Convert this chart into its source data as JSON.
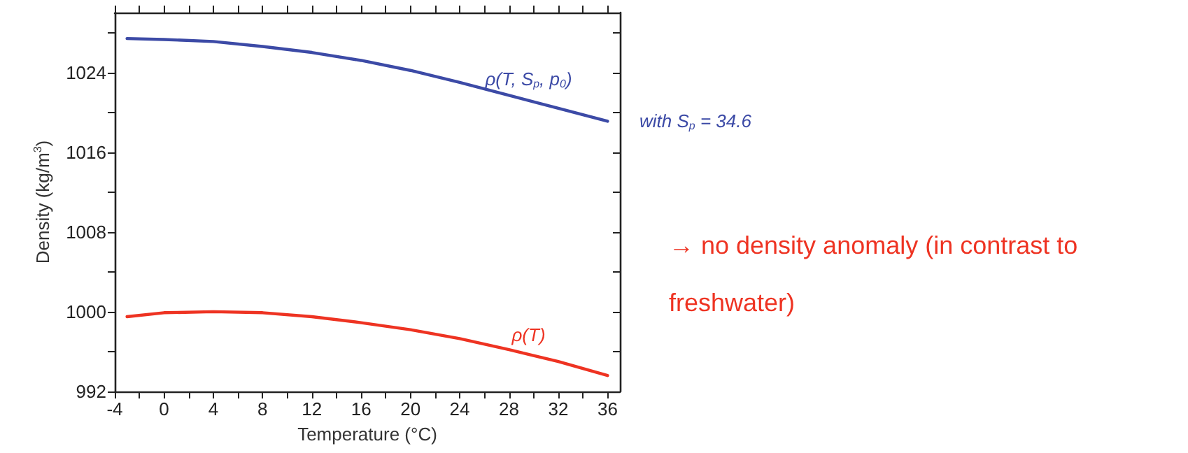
{
  "chart_data": {
    "type": "line",
    "xlabel": "Temperature (°C)",
    "ylabel": "Density (kg/m$^{3}$)",
    "x": [
      -3,
      0,
      4,
      8,
      12,
      16,
      20,
      24,
      28,
      32,
      36
    ],
    "series": [
      {
        "name": "ρ(T, S$_{p}$, p$_{0}$)",
        "color": "#3c4aa6",
        "values": [
          1027.4,
          1027.3,
          1027.1,
          1026.6,
          1026.0,
          1025.2,
          1024.2,
          1023.0,
          1021.7,
          1020.4,
          1019.1
        ]
      },
      {
        "name": "ρ(T)",
        "color": "#ee3322",
        "values": [
          999.5,
          999.9,
          1000.0,
          999.9,
          999.5,
          998.9,
          998.2,
          997.3,
          996.2,
          995.0,
          993.6
        ]
      }
    ],
    "xlim": [
      -4,
      37
    ],
    "ylim": [
      992,
      1030
    ],
    "xticks": [
      -4,
      {
        "value": -2,
        "label": null
      },
      0,
      {
        "value": 2,
        "label": null
      },
      4,
      {
        "value": 6,
        "label": null
      },
      8,
      {
        "value": 10,
        "label": null
      },
      12,
      {
        "value": 14,
        "label": null
      },
      16,
      {
        "value": 18,
        "label": null
      },
      20,
      {
        "value": 22,
        "label": null
      },
      24,
      {
        "value": 26,
        "label": null
      },
      28,
      {
        "value": 30,
        "label": null
      },
      32,
      {
        "value": 34,
        "label": null
      },
      36
    ],
    "yticks": [
      992,
      {
        "value": 996,
        "label": null
      },
      1000,
      {
        "value": 1004,
        "label": null
      },
      1008,
      {
        "value": 1012,
        "label": null
      },
      1016,
      {
        "value": 1020,
        "label": null
      },
      1024,
      {
        "value": 1028,
        "label": null
      }
    ],
    "annotations": [
      "with S$_{p}$ = 34.6",
      "→ no density anomaly (in contrast to freshwater)"
    ],
    "grid": false,
    "marker": "none",
    "line_style": "solid"
  }
}
